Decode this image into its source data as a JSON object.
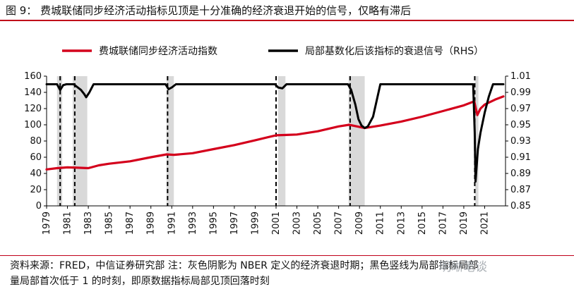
{
  "figure": {
    "title": "图 9： 费城联储同步经济活动指标见顶是十分准确的经济衰退开始的信号，仅略有滞后",
    "source_line1": "资料来源：FRED，中信证券研究部  注：灰色阴影为 NBER 定义的经济衰退时期；黑色竖线为局部指标局部",
    "source_line2": "量局部首次低于 1 的时刻，即原数据指标局部见顶回落时刻",
    "watermark": "明晰笔谈"
  },
  "chart_data": {
    "type": "line",
    "title": "",
    "legend_position": "top",
    "x_ticks": [
      "1979",
      "1981",
      "1983",
      "1985",
      "1987",
      "1989",
      "1991",
      "1993",
      "1995",
      "1997",
      "1999",
      "2001",
      "2003",
      "2005",
      "2007",
      "2009",
      "2011",
      "2013",
      "2015",
      "2017",
      "2019",
      "2021"
    ],
    "xlim": [
      1979,
      2023
    ],
    "ylim_left": [
      0,
      160
    ],
    "y_ticks_left": [
      "0",
      "20",
      "40",
      "60",
      "80",
      "100",
      "120",
      "140",
      "160"
    ],
    "ylim_right": [
      0.85,
      1.01
    ],
    "y_ticks_right": [
      "0.85",
      "0.87",
      "0.89",
      "0.91",
      "0.93",
      "0.95",
      "0.97",
      "0.99",
      "1.01"
    ],
    "recessions": [
      [
        1980.0,
        1980.5
      ],
      [
        1981.5,
        1982.9
      ],
      [
        1990.5,
        1991.2
      ],
      [
        2001.2,
        2001.9
      ],
      [
        2007.95,
        2009.5
      ],
      [
        2020.1,
        2020.4
      ]
    ],
    "signal_lines": [
      1980.3,
      1981.7,
      1990.6,
      2001.0,
      2008.1,
      2020.05
    ],
    "series": [
      {
        "name": "费城联储同步经济活动指数",
        "axis": "left",
        "color": "#d4001c",
        "x": [
          1979,
          1980,
          1981,
          1982,
          1983,
          1984,
          1985,
          1987,
          1989,
          1990.5,
          1991.2,
          1993,
          1995,
          1997,
          1999,
          2001,
          2002,
          2003,
          2005,
          2007,
          2008,
          2009.5,
          2011,
          2013,
          2015,
          2017,
          2019,
          2020.0,
          2020.3,
          2020.6,
          2021,
          2022,
          2022.8
        ],
        "values": [
          45,
          46.5,
          47.5,
          47,
          46.5,
          50,
          52,
          55,
          60,
          63.5,
          63,
          65,
          70,
          75,
          81,
          87,
          87.5,
          88,
          92,
          98,
          100,
          96,
          99,
          104,
          110,
          117,
          124,
          129,
          112,
          120,
          125,
          131,
          135
        ]
      },
      {
        "name": "局部基数化后该指标的衰退信号（RHS）",
        "axis": "right",
        "color": "#000000",
        "x": [
          1979,
          1980.0,
          1980.3,
          1980.6,
          1980.9,
          1981.6,
          1981.9,
          1982.3,
          1982.6,
          1982.8,
          1983.1,
          1983.5,
          1990.4,
          1990.7,
          1991.0,
          1991.4,
          2000.9,
          2001.2,
          2001.6,
          2002.0,
          2007.9,
          2008.2,
          2008.6,
          2008.9,
          2009.2,
          2009.5,
          2009.8,
          2010.3,
          2011.0,
          2019.9,
          2020.05,
          2020.12,
          2020.35,
          2020.6,
          2021.0,
          2021.4,
          2021.8,
          2022.8
        ],
        "values": [
          1.0,
          1.0,
          0.993,
          0.999,
          1.0,
          1.0,
          0.997,
          0.993,
          0.988,
          0.984,
          0.99,
          1.0,
          1.0,
          0.994,
          0.996,
          1.0,
          1.0,
          0.996,
          0.995,
          1.0,
          1.0,
          0.993,
          0.975,
          0.957,
          0.949,
          0.946,
          0.948,
          0.96,
          1.0,
          1.0,
          0.94,
          0.88,
          0.92,
          0.94,
          0.965,
          0.985,
          1.0,
          1.0
        ]
      }
    ]
  }
}
